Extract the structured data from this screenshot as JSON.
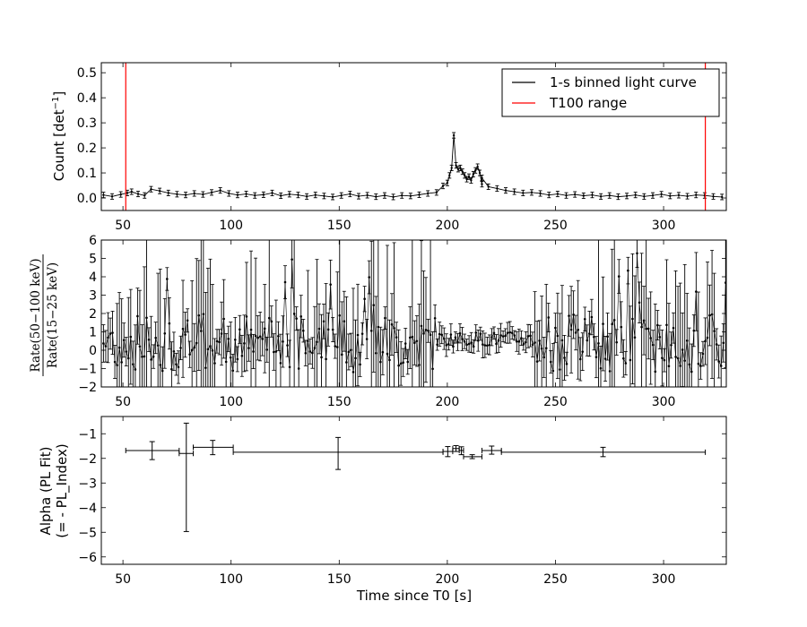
{
  "colors": {
    "data": "#000000",
    "t100": "#ff0000",
    "background": "#ffffff"
  },
  "chart_data": [
    {
      "type": "scatter",
      "title": "",
      "ylabel": "Count [det$^{-1}$]",
      "ylabel_parts": {
        "base": "Count [det",
        "sup": "−1",
        "end": "]"
      },
      "xlim": [
        40,
        329
      ],
      "ylim": [
        -0.05,
        0.54
      ],
      "xticks": [
        50,
        100,
        150,
        200,
        250,
        300
      ],
      "yticks": [
        0.0,
        0.1,
        0.2,
        0.3,
        0.4,
        0.5
      ],
      "ytick_labels": [
        "0.0",
        "0.1",
        "0.2",
        "0.3",
        "0.4",
        "0.5"
      ],
      "legend": {
        "placement": "top-right",
        "entries": [
          {
            "label": "1-s binned light curve",
            "color": "#000000"
          },
          {
            "label": "T100 range",
            "color": "#ff0000"
          }
        ]
      },
      "vlines": [
        51.3,
        319.3
      ],
      "baseline_points": [
        [
          41,
          0.012
        ],
        [
          45,
          0.006
        ],
        [
          49,
          0.014
        ],
        [
          52,
          0.02
        ],
        [
          54,
          0.025
        ],
        [
          57,
          0.016
        ],
        [
          60,
          0.01
        ],
        [
          63,
          0.035
        ],
        [
          67,
          0.028
        ],
        [
          71,
          0.02
        ],
        [
          75,
          0.015
        ],
        [
          79,
          0.012
        ],
        [
          83,
          0.018
        ],
        [
          87,
          0.014
        ],
        [
          91,
          0.022
        ],
        [
          95,
          0.03
        ],
        [
          99,
          0.018
        ],
        [
          103,
          0.012
        ],
        [
          107,
          0.016
        ],
        [
          111,
          0.01
        ],
        [
          115,
          0.013
        ],
        [
          119,
          0.02
        ],
        [
          123,
          0.009
        ],
        [
          127,
          0.015
        ],
        [
          131,
          0.012
        ],
        [
          135,
          0.006
        ],
        [
          139,
          0.012
        ],
        [
          143,
          0.008
        ],
        [
          147,
          0.004
        ],
        [
          151,
          0.01
        ],
        [
          155,
          0.016
        ],
        [
          159,
          0.007
        ],
        [
          163,
          0.011
        ],
        [
          167,
          0.005
        ],
        [
          171,
          0.01
        ],
        [
          175,
          0.004
        ],
        [
          179,
          0.01
        ],
        [
          183,
          0.008
        ],
        [
          187,
          0.013
        ],
        [
          191,
          0.018
        ],
        [
          195,
          0.022
        ],
        [
          198,
          0.048
        ],
        [
          200,
          0.06
        ],
        [
          216,
          0.055
        ],
        [
          219,
          0.045
        ],
        [
          223,
          0.038
        ],
        [
          227,
          0.03
        ],
        [
          231,
          0.025
        ],
        [
          235,
          0.02
        ],
        [
          239,
          0.022
        ],
        [
          243,
          0.018
        ],
        [
          247,
          0.012
        ],
        [
          251,
          0.016
        ],
        [
          255,
          0.01
        ],
        [
          259,
          0.014
        ],
        [
          263,
          0.009
        ],
        [
          267,
          0.012
        ],
        [
          271,
          0.006
        ],
        [
          275,
          0.01
        ],
        [
          279,
          0.005
        ],
        [
          283,
          0.008
        ],
        [
          287,
          0.012
        ],
        [
          291,
          0.006
        ],
        [
          295,
          0.01
        ],
        [
          299,
          0.015
        ],
        [
          303,
          0.008
        ],
        [
          307,
          0.011
        ],
        [
          311,
          0.007
        ],
        [
          315,
          0.012
        ],
        [
          319,
          0.01
        ],
        [
          323,
          0.006
        ],
        [
          327,
          0.004
        ]
      ],
      "burst_points": [
        [
          201,
          0.09
        ],
        [
          202,
          0.12
        ],
        [
          203,
          0.25
        ],
        [
          204,
          0.13
        ],
        [
          205,
          0.115
        ],
        [
          206,
          0.12
        ],
        [
          207,
          0.105
        ],
        [
          208,
          0.09
        ],
        [
          209,
          0.075
        ],
        [
          210,
          0.085
        ],
        [
          211,
          0.07
        ],
        [
          212,
          0.095
        ],
        [
          213,
          0.11
        ],
        [
          214,
          0.125
        ],
        [
          215,
          0.1
        ],
        [
          216,
          0.08
        ]
      ],
      "error": 0.011
    },
    {
      "type": "scatter",
      "ylabel": "Rate(50–100 keV) / Rate(15–25 keV)",
      "ylabel_parts": {
        "num": "Rate(50−100 keV)",
        "den": "Rate(15−25 keV)"
      },
      "xlim": [
        40,
        329
      ],
      "ylim": [
        -2,
        6
      ],
      "xticks": [
        50,
        100,
        150,
        200,
        250,
        300
      ],
      "yticks": [
        -2,
        -1,
        0,
        1,
        2,
        3,
        4,
        5,
        6
      ],
      "ytick_labels": [
        "−2",
        "−1",
        "0",
        "1",
        "2",
        "3",
        "4",
        "5",
        "6"
      ],
      "x_range": [
        40,
        329
      ],
      "typical_value": 0.4,
      "quiet_interval": [
        195,
        240
      ]
    },
    {
      "type": "scatter",
      "xlabel": "Time since T0 [s]",
      "ylabel": "Alpha (PL Fit)",
      "ylabel2": "(= - PL_Index)",
      "xlim": [
        40,
        329
      ],
      "ylim": [
        -6.3,
        -0.3
      ],
      "xticks": [
        50,
        100,
        150,
        200,
        250,
        300
      ],
      "yticks": [
        -6,
        -5,
        -4,
        -3,
        -2,
        -1
      ],
      "ytick_labels": [
        "−6",
        "−5",
        "−4",
        "−3",
        "−2",
        "−1"
      ],
      "points": [
        {
          "x": 63.5,
          "xmin": 51.3,
          "xmax": 76.0,
          "y": -1.68,
          "ylo": -2.05,
          "yhi": -1.32
        },
        {
          "x": 79.3,
          "xmin": 76.0,
          "xmax": 82.5,
          "y": -1.8,
          "ylo": -4.97,
          "yhi": -0.57
        },
        {
          "x": 91.5,
          "xmin": 82.5,
          "xmax": 101.0,
          "y": -1.55,
          "ylo": -1.85,
          "yhi": -1.27
        },
        {
          "x": 149.5,
          "xmin": 101.0,
          "xmax": 198.0,
          "y": -1.75,
          "ylo": -2.45,
          "yhi": -1.15
        },
        {
          "x": 200.2,
          "xmin": 198.0,
          "xmax": 202.5,
          "y": -1.72,
          "ylo": -1.93,
          "yhi": -1.52
        },
        {
          "x": 204.0,
          "xmin": 202.5,
          "xmax": 205.5,
          "y": -1.6,
          "ylo": -1.72,
          "yhi": -1.48
        },
        {
          "x": 206.5,
          "xmin": 205.5,
          "xmax": 207.5,
          "y": -1.68,
          "ylo": -1.85,
          "yhi": -1.53
        },
        {
          "x": 211.5,
          "xmin": 207.5,
          "xmax": 216.0,
          "y": -1.93,
          "ylo": -2.01,
          "yhi": -1.85
        },
        {
          "x": 220.5,
          "xmin": 216.0,
          "xmax": 225.0,
          "y": -1.68,
          "ylo": -1.83,
          "yhi": -1.5
        },
        {
          "x": 272.0,
          "xmin": 225.0,
          "xmax": 319.3,
          "y": -1.75,
          "ylo": -1.93,
          "yhi": -1.55
        }
      ]
    }
  ]
}
